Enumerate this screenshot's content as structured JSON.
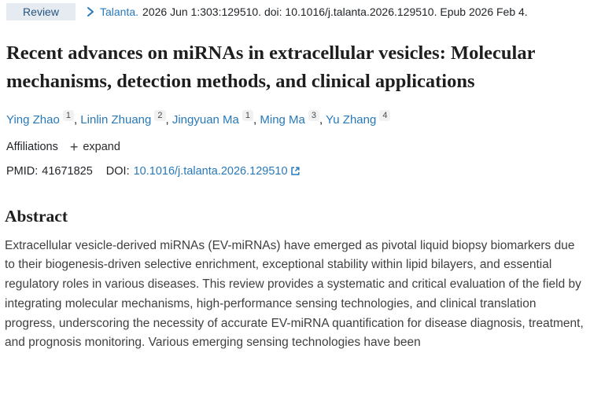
{
  "header": {
    "badge": "Review",
    "journal": "Talanta.",
    "citation": "2026 Jun 1:303:129510. doi: 10.1016/j.talanta.2026.129510. Epub 2026 Feb 4."
  },
  "title": "Recent advances on miRNAs in extracellular vesicles: Molecular mechanisms, detection methods, and clinical applications",
  "authors": [
    {
      "name": "Ying Zhao",
      "sup": "1"
    },
    {
      "name": "Linlin Zhuang",
      "sup": "2"
    },
    {
      "name": "Jingyuan Ma",
      "sup": "1"
    },
    {
      "name": "Ming Ma",
      "sup": "3"
    },
    {
      "name": "Yu Zhang",
      "sup": "4"
    }
  ],
  "affiliations": {
    "label": "Affiliations",
    "plus": "+",
    "expand_label": "expand"
  },
  "identifiers": {
    "pmid_label": "PMID:",
    "pmid": "41671825",
    "doi_label": "DOI:",
    "doi": "10.1016/j.talanta.2026.129510"
  },
  "abstract": {
    "heading": "Abstract",
    "text": "Extracellular vesicle-derived miRNAs (EV-miRNAs) have emerged as pivotal liquid biopsy biomarkers due to their biogenesis-driven selective enrichment, exceptional stability within lipid bilayers, and essential regulatory roles in various diseases. This review provides a systematic and critical evaluation of the field by integrating molecular mechanisms, high-performance sensing technologies, and clinical translation progress, underscoring the necessity of accurate EV-miRNA quantification for disease diagnosis, treatment, and prognosis monitoring. Various emerging sensing technologies have been"
  },
  "colors": {
    "link_blue": "#2879b9",
    "badge_background": "#e6ebf2",
    "badge_text": "#25557f"
  }
}
